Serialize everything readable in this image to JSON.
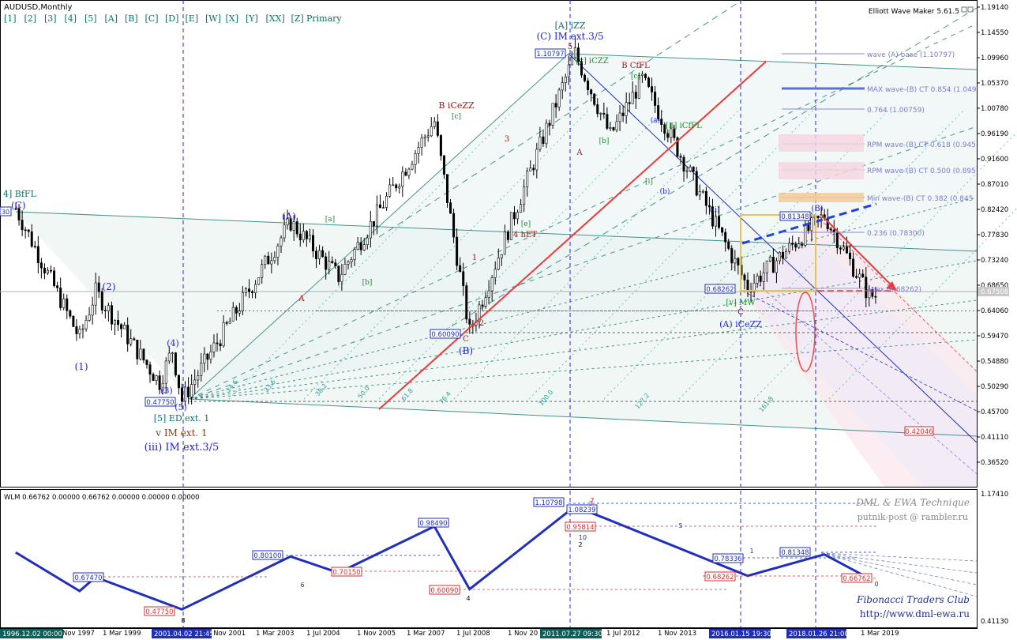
{
  "symbol_label": "AUDUSD,Monthly",
  "indicator_name": "Elliott Wave Maker 5.61.5",
  "wlm_label": "WLM 0.66762 0.00000 0.66762 0.00000 0.00000 0.00000",
  "degree_buttons": [
    "[1]",
    "[2]",
    "[3]",
    "[4]",
    "[5]",
    "[A]",
    "[B]",
    "[C]",
    "[D]",
    "[E]",
    "[W]",
    "[X]",
    "[Y]",
    "[XX]",
    "[Z]"
  ],
  "primary_label": "Primary",
  "price_axis": [
    "1.19140",
    "1.14550",
    "1.09960",
    "1.05370",
    "1.00780",
    "0.96190",
    "0.91600",
    "0.87010",
    "0.82420",
    "0.77830",
    "0.73240",
    "0.68650",
    "0.64060",
    "0.59470",
    "0.54880",
    "0.50290",
    "0.45700",
    "0.41110",
    "0.36520"
  ],
  "current_price": "0.67508",
  "wlm_axis": [
    "1.17410",
    "0.41130"
  ],
  "time_axis": [
    "Nov 1997",
    "1 Mar 1999",
    "1 Nov 2001",
    "1 Mar 2003",
    "1 Jul 2004",
    "1 Nov 2005",
    "1 Mar 2007",
    "1 Jul 2008",
    "1 Nov 20",
    "1 Jul 2012",
    "1 Nov 2013",
    "1 Mar 2019"
  ],
  "time_highlights": [
    "1996.12.02 00:00",
    "2001.04.02 21:45",
    "2011.07.27 09:30",
    "2016.01.15 19:30",
    "2018.01.26 21:00"
  ],
  "price_boxes": [
    "1.10797",
    "0.81348",
    "0.68262",
    "0.60090",
    "0.47750"
  ],
  "red_price_box": "0.42046",
  "left_edge_value": "30",
  "wave_labels": {
    "a_izz": "[A] iZZ",
    "c_im_ext": "(C) IM ext.3/5",
    "b_iceZZ": "B iCeZZ",
    "b_cfl": "B CfFL",
    "bfl": "4] BfFL",
    "c_paren": "(C)",
    "a_paren": "(A)",
    "b_paren": "(B)",
    "w1": "(1)",
    "w2": "(2)",
    "w3": "(3)",
    "w4": "(4)",
    "w5": "(5)",
    "ed_ext": "[5] ED ext. 1",
    "v_im_ext": "v IM ext. 1",
    "iii_im_ext": "(iii) IM ext.3/5",
    "a_iceZZ_bottom": "(A) iCeZZ",
    "four_het": "4 hET",
    "ii_icfl": "[ii] iCfFL",
    "c_izz": "[c] iCZZ",
    "v_mw": "[v] MW"
  },
  "fib_lines": [
    "wave (A) base (1.10797)",
    "MAX wave-(B) CT 0.854 (1.049",
    "0.764 (1.00759)",
    "RPM wave-(B) CT 0.618 (0.945",
    "RPM wave-(B) CT 0.500 (0.895",
    "Min wave-(B) CT 0.382 (0.845",
    "0.236 (0.78300)",
    "apex (0.68262)"
  ],
  "fan_labels": [
    "14.6",
    "23.6",
    "38.2",
    "50.0",
    "61.8",
    "76.4",
    "100.0",
    "127.2",
    "161.8"
  ],
  "wlm_boxes_blue": [
    "1.10798",
    "1.08239",
    "0.98490",
    "0.80100",
    "0.67470",
    "0.78336",
    "0.81348"
  ],
  "wlm_boxes_red": [
    "0.95814",
    "0.70150",
    "0.60090",
    "0.47750",
    "0.68262",
    "0.66762"
  ],
  "wlm_counts": [
    "6",
    "4",
    "8",
    "2",
    "10",
    "5",
    "1",
    "0",
    "3",
    "7"
  ],
  "branding": {
    "line1": "DML & EWA Technique",
    "line2": "putnik-post @ rambler.ru",
    "line3": "Fibonacci Traders Club",
    "line4": "http://www.dml-ewa.ru"
  },
  "colors": {
    "wave_blue": "#1f1fd6",
    "wave_red": "#b01010",
    "fib_green": "#0c6f6a",
    "channel_red": "#e83a3a",
    "wlm_line": "#1f2fb8"
  },
  "chart_data": {
    "type": "candlestick",
    "title": "AUDUSD,Monthly",
    "ylim": [
      0.34,
      1.2
    ],
    "swings": [
      {
        "x": "1996.12",
        "y": 0.826,
        "label": "(C)"
      },
      {
        "x": "1998.08",
        "y": 0.59,
        "label": "(1)"
      },
      {
        "x": "1999.01",
        "y": 0.6747,
        "label": "(2)"
      },
      {
        "x": "2000.09",
        "y": 0.51,
        "label": "(3)"
      },
      {
        "x": "2001.01",
        "y": 0.57,
        "label": "(4)"
      },
      {
        "x": "2001.04",
        "y": 0.4775,
        "label": "(5)"
      },
      {
        "x": "2004.02",
        "y": 0.801,
        "label": "(A)"
      },
      {
        "x": "2005.05",
        "y": 0.7015,
        "label": "[b]"
      },
      {
        "x": "2007.11",
        "y": 0.9849,
        "label": "[c]"
      },
      {
        "x": "2008.10",
        "y": 0.6009,
        "label": "(B)"
      },
      {
        "x": "2011.07",
        "y": 1.108,
        "label": "(C)"
      },
      {
        "x": "2012.06",
        "y": 0.9581,
        "label": "A"
      },
      {
        "x": "2013.04",
        "y": 1.06,
        "label": "B"
      },
      {
        "x": "2016.01",
        "y": 0.6826,
        "label": "(A)"
      },
      {
        "x": "2018.01",
        "y": 0.8135,
        "label": "(B)"
      },
      {
        "x": "2019.03",
        "y": 0.6676,
        "label": "C"
      }
    ],
    "wlm_points": [
      {
        "x": "1996.12",
        "y": 0.826
      },
      {
        "x": "1998.08",
        "y": 0.59
      },
      {
        "x": "1999.01",
        "y": 0.6747
      },
      {
        "x": "2001.04",
        "y": 0.4775
      },
      {
        "x": "2004.02",
        "y": 0.801
      },
      {
        "x": "2005.05",
        "y": 0.7015
      },
      {
        "x": "2007.11",
        "y": 0.9849
      },
      {
        "x": "2008.10",
        "y": 0.6009
      },
      {
        "x": "2011.07",
        "y": 1.108
      },
      {
        "x": "2016.01",
        "y": 0.6826
      },
      {
        "x": "2018.01",
        "y": 0.8135
      },
      {
        "x": "2019.03",
        "y": 0.6676
      }
    ]
  }
}
